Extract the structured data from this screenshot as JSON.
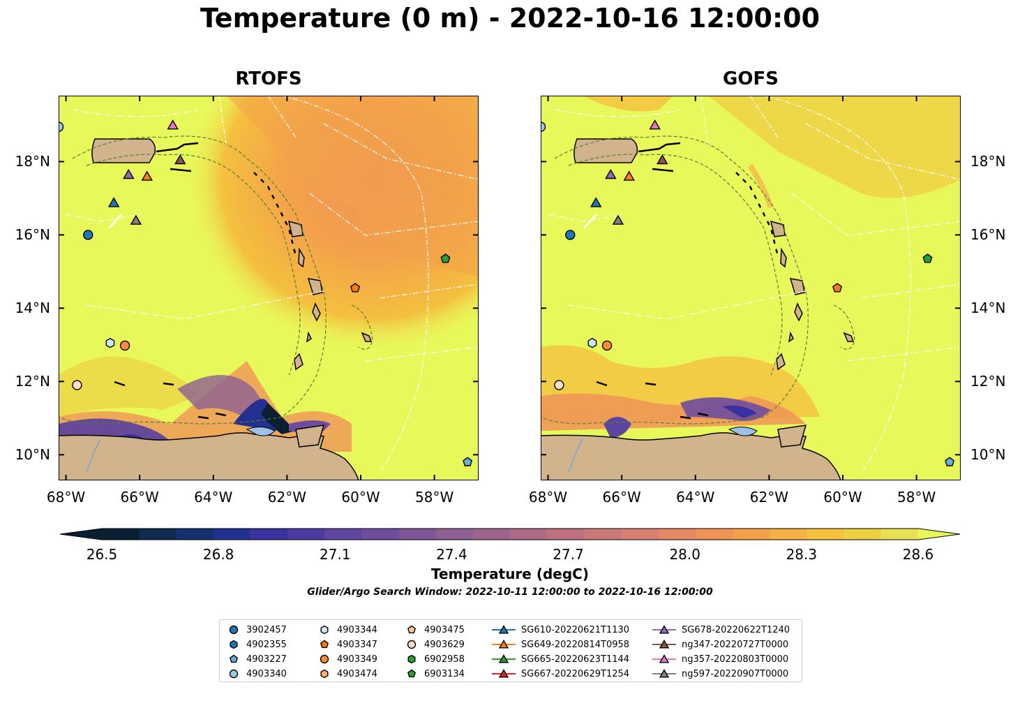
{
  "title": "Temperature (0 m) - 2022-10-16 12:00:00",
  "maps": [
    {
      "title": "RTOFS"
    },
    {
      "title": "GOFS"
    }
  ],
  "axes": {
    "lon_ticks": [
      "68°W",
      "66°W",
      "64°W",
      "62°W",
      "60°W",
      "58°W"
    ],
    "lon_values": [
      -68,
      -66,
      -64,
      -62,
      -60,
      -58
    ],
    "lat_ticks": [
      "18°N",
      "16°N",
      "14°N",
      "12°N",
      "10°N"
    ],
    "lat_values": [
      18,
      16,
      14,
      12,
      10
    ],
    "lon_range": [
      -68.2,
      -56.8
    ],
    "lat_range": [
      9.3,
      19.8
    ]
  },
  "colorbar": {
    "label": "Temperature (degC)",
    "ticks": [
      "26.5",
      "26.8",
      "27.1",
      "27.4",
      "27.7",
      "28.0",
      "28.3",
      "28.6"
    ],
    "range": [
      26.5,
      28.6
    ],
    "colormap": "thermal",
    "colors": [
      "#0b1f33",
      "#102b4e",
      "#15306e",
      "#23308f",
      "#3a32a0",
      "#4d3aa2",
      "#5e459f",
      "#6e4e9c",
      "#7e5698",
      "#8e5e93",
      "#9e648e",
      "#ae6b88",
      "#bd7181",
      "#cb787a",
      "#d97f71",
      "#e58865",
      "#ee9457",
      "#f3a24a",
      "#f5b141",
      "#f4c03e",
      "#f0d043",
      "#e7e158"
    ],
    "extend_color": "#e8f85a"
  },
  "search_window": "Glider/Argo Search Window: 2022-10-11 12:00:00 to 2022-10-16 12:00:00",
  "legend": [
    {
      "label": "3902457",
      "marker": "circle",
      "color": "#1f77b4"
    },
    {
      "label": "4902355",
      "marker": "hexagon",
      "color": "#1f77b4"
    },
    {
      "label": "4903227",
      "marker": "pentagon",
      "color": "#6baed6"
    },
    {
      "label": "4903340",
      "marker": "circle",
      "color": "#9ecae1"
    },
    {
      "label": "4903344",
      "marker": "hexagon",
      "color": "#c6e8f7"
    },
    {
      "label": "4903347",
      "marker": "pentagon",
      "color": "#f97a12"
    },
    {
      "label": "4903349",
      "marker": "circle",
      "color": "#fd8d3c"
    },
    {
      "label": "4903474",
      "marker": "hexagon",
      "color": "#fdae6b"
    },
    {
      "label": "4903475",
      "marker": "pentagon",
      "color": "#fdc89a"
    },
    {
      "label": "4903629",
      "marker": "circle",
      "color": "#fde0c5"
    },
    {
      "label": "6902958",
      "marker": "hexagon",
      "color": "#2ca02c"
    },
    {
      "label": "6903134",
      "marker": "pentagon",
      "color": "#2ca02c"
    },
    {
      "label": "SG610-20220621T1130",
      "marker": "triangle",
      "color": "#1f77b4"
    },
    {
      "label": "SG649-20220814T0958",
      "marker": "triangle",
      "color": "#ff7f0e"
    },
    {
      "label": "SG665-20220623T1144",
      "marker": "triangle",
      "color": "#2ca02c"
    },
    {
      "label": "SG667-20220629T1254",
      "marker": "triangle",
      "color": "#d62728"
    },
    {
      "label": "SG678-20220622T1240",
      "marker": "triangle",
      "color": "#9467bd"
    },
    {
      "label": "ng347-20220727T0000",
      "marker": "triangle",
      "color": "#8c564b"
    },
    {
      "label": "ng357-20220803T0000",
      "marker": "triangle",
      "color": "#e377c2"
    },
    {
      "label": "ng597-20220907T0000",
      "marker": "triangle",
      "color": "#7f7f7f"
    }
  ],
  "observations": [
    {
      "id": "3902457",
      "lon": -67.4,
      "lat": 16.0
    },
    {
      "id": "4903344",
      "lon": -66.8,
      "lat": 13.05
    },
    {
      "id": "4903349",
      "lon": -66.4,
      "lat": 12.98
    },
    {
      "id": "4903629",
      "lon": -67.7,
      "lat": 11.9
    },
    {
      "id": "4903340",
      "lon": -68.2,
      "lat": 18.95
    },
    {
      "id": "4903347",
      "lon": -60.15,
      "lat": 14.55
    },
    {
      "id": "6903134",
      "lon": -57.7,
      "lat": 15.35
    },
    {
      "id": "4903227",
      "lon": -57.1,
      "lat": 9.8
    },
    {
      "id": "SG610-20220621T1130",
      "lon": -66.7,
      "lat": 16.88
    },
    {
      "id": "SG678-20220622T1240",
      "lon": -66.3,
      "lat": 17.65
    },
    {
      "id": "SG649-20220814T0958",
      "lon": -65.8,
      "lat": 17.6
    },
    {
      "id": "ng347-20220727T0000",
      "lon": -64.9,
      "lat": 18.05
    },
    {
      "id": "ng357-20220803T0000",
      "lon": -65.1,
      "lat": 19.0
    },
    {
      "id": "ng597-20220907T0000",
      "lon": -66.1,
      "lat": 16.4
    }
  ]
}
